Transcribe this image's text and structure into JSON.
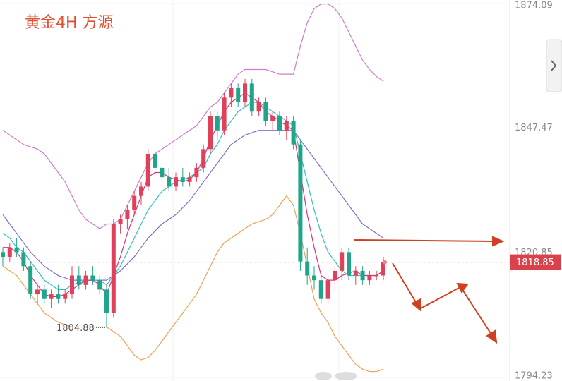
{
  "chart_data": {
    "type": "candlestick",
    "title": "黄金4H  方源",
    "ylim": [
      1794.23,
      1874.09
    ],
    "yticks": [
      1874.09,
      1847.47,
      1820.85,
      1794.23
    ],
    "current_price": 1818.85,
    "low_label": 1804.88,
    "up_color": "#e0405a",
    "down_color": "#1ea58a",
    "candles": [
      [
        1821,
        1822,
        1818,
        1820
      ],
      [
        1820,
        1823,
        1819,
        1822
      ],
      [
        1822,
        1824,
        1820,
        1821
      ],
      [
        1821,
        1822,
        1817,
        1818
      ],
      [
        1818,
        1819,
        1811,
        1812
      ],
      [
        1812,
        1814,
        1810,
        1813
      ],
      [
        1813,
        1814,
        1810,
        1811
      ],
      [
        1811,
        1813,
        1809,
        1812
      ],
      [
        1812,
        1814,
        1810,
        1811
      ],
      [
        1811,
        1813,
        1810,
        1812
      ],
      [
        1812,
        1818,
        1811,
        1816
      ],
      [
        1816,
        1818,
        1813,
        1814
      ],
      [
        1814,
        1817,
        1813,
        1816
      ],
      [
        1816,
        1818,
        1814,
        1815
      ],
      [
        1815,
        1816,
        1812,
        1813
      ],
      [
        1813,
        1814,
        1804.88,
        1808
      ],
      [
        1808,
        1828,
        1807,
        1827
      ],
      [
        1827,
        1829,
        1825,
        1828
      ],
      [
        1828,
        1831,
        1826,
        1830
      ],
      [
        1830,
        1834,
        1829,
        1833
      ],
      [
        1833,
        1836,
        1831,
        1835
      ],
      [
        1835,
        1843,
        1834,
        1842
      ],
      [
        1842,
        1843,
        1838,
        1839
      ],
      [
        1839,
        1840,
        1836,
        1837
      ],
      [
        1837,
        1839,
        1834,
        1835
      ],
      [
        1835,
        1838,
        1834,
        1837
      ],
      [
        1837,
        1839,
        1835,
        1836
      ],
      [
        1836,
        1838,
        1835,
        1837
      ],
      [
        1837,
        1840,
        1836,
        1839
      ],
      [
        1839,
        1844,
        1838,
        1843
      ],
      [
        1843,
        1851,
        1842,
        1850
      ],
      [
        1850,
        1851,
        1845,
        1847
      ],
      [
        1847,
        1855,
        1846,
        1854
      ],
      [
        1854,
        1857,
        1852,
        1856
      ],
      [
        1856,
        1857,
        1852,
        1853
      ],
      [
        1853,
        1858,
        1852,
        1857
      ],
      [
        1857,
        1858,
        1850,
        1851
      ],
      [
        1851,
        1854,
        1850,
        1853
      ],
      [
        1853,
        1854,
        1848,
        1849
      ],
      [
        1849,
        1851,
        1847,
        1850
      ],
      [
        1850,
        1851,
        1846,
        1847
      ],
      [
        1847,
        1850,
        1845,
        1849
      ],
      [
        1849,
        1850,
        1843,
        1844
      ],
      [
        1844,
        1845,
        1817,
        1819
      ],
      [
        1819,
        1822,
        1814,
        1816
      ],
      [
        1816,
        1818,
        1813,
        1815
      ],
      [
        1815,
        1816,
        1810,
        1811
      ],
      [
        1811,
        1816,
        1810,
        1815
      ],
      [
        1815,
        1818,
        1813,
        1817
      ],
      [
        1817,
        1822,
        1815,
        1821
      ],
      [
        1821,
        1822,
        1815,
        1816
      ],
      [
        1816,
        1818,
        1814,
        1817
      ],
      [
        1817,
        1818,
        1814,
        1815
      ],
      [
        1815,
        1817,
        1814,
        1816
      ],
      [
        1816,
        1817,
        1815,
        1816
      ],
      [
        1816,
        1820,
        1815,
        1818.85
      ]
    ],
    "series": [
      {
        "color": "#d07ad0",
        "values": [
          1847,
          1846,
          1845,
          1844,
          1843.5,
          1843,
          1842,
          1840,
          1838,
          1836,
          1833,
          1830,
          1828,
          1827,
          1826,
          1827,
          1827,
          1828,
          1831,
          1834,
          1837,
          1840,
          1842,
          1843,
          1844,
          1845,
          1846,
          1847,
          1848,
          1850,
          1852,
          1853,
          1855,
          1857,
          1859,
          1860,
          1860,
          1860,
          1860,
          1859.5,
          1859,
          1859,
          1859,
          1865,
          1870,
          1873,
          1874,
          1874,
          1873,
          1871,
          1868,
          1865,
          1862,
          1860,
          1858.5,
          1857.5
        ]
      },
      {
        "color": "#f0a050",
        "values": [
          1818,
          1817,
          1816,
          1814,
          1812,
          1810,
          1808,
          1807,
          1806,
          1805.5,
          1805,
          1805,
          1805,
          1805,
          1805,
          1805,
          1804,
          1803,
          1801,
          1799,
          1798,
          1798.5,
          1800,
          1802,
          1804,
          1806,
          1808,
          1810,
          1812,
          1815,
          1818,
          1821,
          1823,
          1824,
          1825,
          1826,
          1827,
          1827.5,
          1828,
          1829,
          1831,
          1833,
          1831,
          1825,
          1818,
          1811,
          1808,
          1806,
          1803,
          1801,
          1799,
          1797,
          1796,
          1795.5,
          1795.5,
          1796
        ]
      },
      {
        "color": "#8070d0",
        "values": [
          1829,
          1827,
          1825,
          1823,
          1821,
          1819.5,
          1818,
          1817,
          1816,
          1815.5,
          1815,
          1815,
          1815,
          1815,
          1815,
          1815,
          1816,
          1817,
          1818.5,
          1820,
          1822,
          1824,
          1825.5,
          1827,
          1828,
          1829,
          1830.5,
          1832,
          1834,
          1836,
          1838,
          1840,
          1842,
          1844,
          1845,
          1846,
          1846.5,
          1847,
          1847,
          1847,
          1847,
          1847,
          1847,
          1845,
          1843,
          1841,
          1839,
          1837,
          1835,
          1833,
          1831,
          1829,
          1827,
          1826,
          1825,
          1824
        ]
      },
      {
        "color": "#30c0c0",
        "values": [
          1825,
          1824,
          1822,
          1821,
          1819,
          1817,
          1815,
          1814,
          1813,
          1813,
          1814,
          1814.5,
          1815,
          1815,
          1815,
          1814,
          1816,
          1818,
          1821,
          1824,
          1827,
          1830,
          1832,
          1834,
          1835,
          1836,
          1836.5,
          1837,
          1838,
          1839,
          1842,
          1844,
          1847,
          1849,
          1851,
          1852,
          1853,
          1853,
          1852,
          1851,
          1850,
          1849,
          1848,
          1842,
          1836,
          1830,
          1825,
          1821,
          1819,
          1817,
          1816,
          1816,
          1816,
          1816,
          1816,
          1817
        ]
      },
      {
        "color": "#e0307a",
        "values": [
          1822,
          1822,
          1821,
          1819,
          1816,
          1814,
          1812,
          1811.5,
          1811.5,
          1812,
          1813,
          1814,
          1815,
          1815,
          1814,
          1812,
          1816,
          1820,
          1825,
          1829,
          1833,
          1837,
          1838,
          1838,
          1837,
          1836.5,
          1836,
          1836.5,
          1838,
          1841,
          1845,
          1848,
          1851,
          1853,
          1854,
          1855,
          1854,
          1853,
          1851,
          1850,
          1849,
          1848,
          1847,
          1838,
          1829,
          1822,
          1816,
          1815,
          1815,
          1816,
          1816.5,
          1817,
          1816,
          1816,
          1816,
          1817
        ]
      }
    ]
  }
}
